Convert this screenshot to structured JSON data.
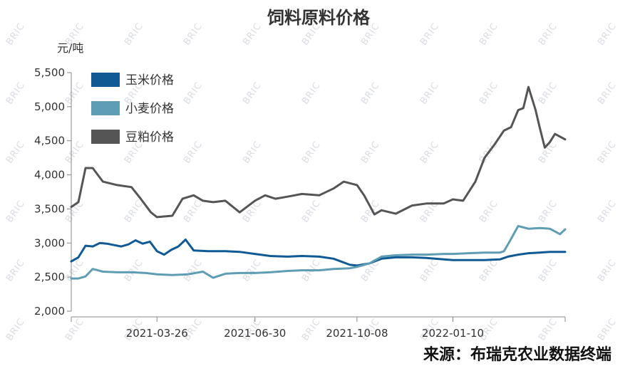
{
  "chart_data": {
    "type": "line",
    "title": "饲料原料价格",
    "ylabel": "元/吨",
    "xlabel": "",
    "ylim": [
      2000,
      5500
    ],
    "yticks": [
      2000,
      2500,
      3000,
      3500,
      4000,
      4500,
      5000,
      5500
    ],
    "ytick_labels": [
      "2,000",
      "2,500",
      "3,000",
      "3,500",
      "4,000",
      "4,500",
      "5,000",
      "5,500"
    ],
    "x_range": [
      "2021-01-01",
      "2022-04-30"
    ],
    "xtick_labels": [
      "2021-03-26",
      "2021-06-30",
      "2021-10-08",
      "2022-01-10"
    ],
    "grid": false,
    "legend_position": "top-left",
    "source": "来源：布瑞克农业数据终端",
    "watermark": "BRIC",
    "series": [
      {
        "name": "玉米价格",
        "color": "#0f5a94",
        "x": [
          "2021-01-01",
          "2021-01-08",
          "2021-01-15",
          "2021-01-22",
          "2021-01-29",
          "2021-02-05",
          "2021-02-12",
          "2021-02-19",
          "2021-02-26",
          "2021-03-05",
          "2021-03-12",
          "2021-03-19",
          "2021-03-26",
          "2021-04-02",
          "2021-04-09",
          "2021-04-16",
          "2021-04-23",
          "2021-05-01",
          "2021-05-15",
          "2021-06-01",
          "2021-06-15",
          "2021-06-30",
          "2021-07-15",
          "2021-08-01",
          "2021-08-15",
          "2021-09-01",
          "2021-09-15",
          "2021-10-01",
          "2021-10-08",
          "2021-10-20",
          "2021-11-01",
          "2021-11-15",
          "2021-12-01",
          "2021-12-15",
          "2022-01-01",
          "2022-01-10",
          "2022-01-25",
          "2022-02-10",
          "2022-02-25",
          "2022-03-05",
          "2022-03-15",
          "2022-03-25",
          "2022-04-05",
          "2022-04-15",
          "2022-04-30"
        ],
        "values": [
          2730,
          2790,
          2960,
          2950,
          3000,
          2990,
          2970,
          2950,
          2980,
          3040,
          2990,
          3020,
          2880,
          2830,
          2900,
          2950,
          3050,
          2890,
          2880,
          2880,
          2870,
          2840,
          2810,
          2800,
          2810,
          2800,
          2770,
          2680,
          2670,
          2700,
          2770,
          2790,
          2790,
          2780,
          2760,
          2750,
          2750,
          2750,
          2760,
          2800,
          2830,
          2850,
          2860,
          2870,
          2870
        ]
      },
      {
        "name": "小麦价格",
        "color": "#5f9db5",
        "x": [
          "2021-01-01",
          "2021-01-08",
          "2021-01-15",
          "2021-01-22",
          "2021-02-01",
          "2021-02-15",
          "2021-03-01",
          "2021-03-15",
          "2021-03-26",
          "2021-04-10",
          "2021-04-25",
          "2021-05-10",
          "2021-05-20",
          "2021-06-01",
          "2021-06-15",
          "2021-06-30",
          "2021-07-15",
          "2021-08-01",
          "2021-08-15",
          "2021-09-01",
          "2021-09-15",
          "2021-10-01",
          "2021-10-08",
          "2021-10-20",
          "2021-11-01",
          "2021-11-15",
          "2021-12-01",
          "2021-12-15",
          "2022-01-01",
          "2022-01-10",
          "2022-01-25",
          "2022-02-10",
          "2022-02-25",
          "2022-03-01",
          "2022-03-05",
          "2022-03-15",
          "2022-03-25",
          "2022-04-05",
          "2022-04-15",
          "2022-04-25",
          "2022-04-30"
        ],
        "values": [
          2480,
          2480,
          2510,
          2620,
          2580,
          2570,
          2570,
          2560,
          2540,
          2530,
          2540,
          2580,
          2490,
          2550,
          2560,
          2560,
          2570,
          2590,
          2600,
          2600,
          2620,
          2630,
          2650,
          2700,
          2800,
          2820,
          2830,
          2830,
          2840,
          2840,
          2850,
          2860,
          2860,
          2880,
          2980,
          3250,
          3210,
          3220,
          3210,
          3130,
          3200
        ]
      },
      {
        "name": "豆粕价格",
        "color": "#555555",
        "x": [
          "2021-01-01",
          "2021-01-08",
          "2021-01-15",
          "2021-01-22",
          "2021-02-01",
          "2021-02-15",
          "2021-03-01",
          "2021-03-10",
          "2021-03-20",
          "2021-03-26",
          "2021-04-10",
          "2021-04-20",
          "2021-05-01",
          "2021-05-10",
          "2021-05-20",
          "2021-06-01",
          "2021-06-15",
          "2021-06-30",
          "2021-07-10",
          "2021-07-20",
          "2021-08-01",
          "2021-08-15",
          "2021-09-01",
          "2021-09-15",
          "2021-09-25",
          "2021-10-08",
          "2021-10-15",
          "2021-10-25",
          "2021-11-01",
          "2021-11-15",
          "2021-12-01",
          "2021-12-15",
          "2022-01-01",
          "2022-01-10",
          "2022-01-20",
          "2022-02-01",
          "2022-02-10",
          "2022-02-20",
          "2022-03-01",
          "2022-03-08",
          "2022-03-15",
          "2022-03-20",
          "2022-03-25",
          "2022-04-01",
          "2022-04-05",
          "2022-04-10",
          "2022-04-15",
          "2022-04-20",
          "2022-04-30"
        ],
        "values": [
          3530,
          3600,
          4100,
          4100,
          3900,
          3850,
          3820,
          3650,
          3450,
          3380,
          3400,
          3650,
          3700,
          3620,
          3600,
          3620,
          3450,
          3620,
          3700,
          3650,
          3680,
          3720,
          3700,
          3800,
          3900,
          3850,
          3700,
          3420,
          3480,
          3430,
          3550,
          3580,
          3580,
          3640,
          3620,
          3900,
          4250,
          4450,
          4650,
          4700,
          4950,
          4980,
          5290,
          4950,
          4700,
          4400,
          4480,
          4600,
          4520
        ]
      }
    ]
  }
}
